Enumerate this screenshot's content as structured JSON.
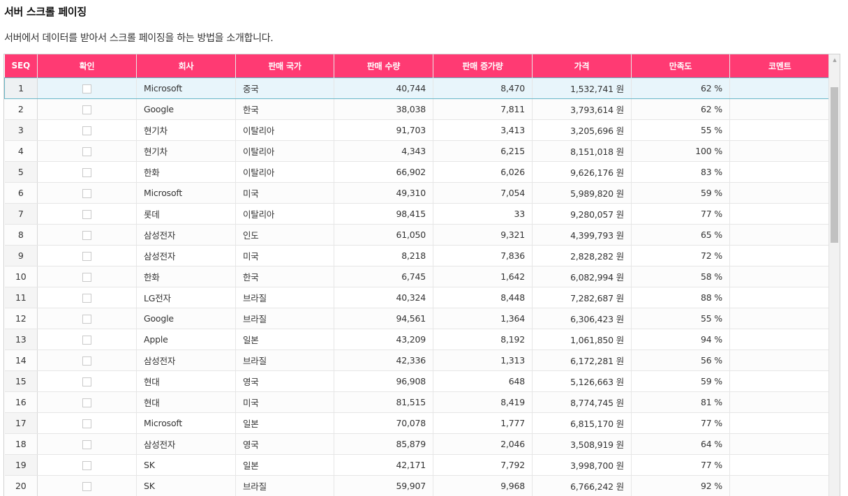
{
  "page": {
    "title": "서버 스크롤 페이징",
    "description": "서버에서 데이터를 받아서 스크롤 페이징을 하는 방법을 소개합니다."
  },
  "grid": {
    "columns": [
      "SEQ",
      "확인",
      "회사",
      "판매 국가",
      "판매 수량",
      "판매 증가량",
      "가격",
      "만족도",
      "코멘트"
    ],
    "header_color": "#ff3a73",
    "selected_row": 1,
    "rows": [
      {
        "seq": "1",
        "company": "Microsoft",
        "country": "중국",
        "qty": "40,744",
        "inc": "8,470",
        "price": "1,532,741 원",
        "sat": "62 %",
        "comment": ""
      },
      {
        "seq": "2",
        "company": "Google",
        "country": "한국",
        "qty": "38,038",
        "inc": "7,811",
        "price": "3,793,614 원",
        "sat": "62 %",
        "comment": ""
      },
      {
        "seq": "3",
        "company": "현기차",
        "country": "이탈리아",
        "qty": "91,703",
        "inc": "3,413",
        "price": "3,205,696 원",
        "sat": "55 %",
        "comment": ""
      },
      {
        "seq": "4",
        "company": "현기차",
        "country": "이탈리아",
        "qty": "4,343",
        "inc": "6,215",
        "price": "8,151,018 원",
        "sat": "100 %",
        "comment": ""
      },
      {
        "seq": "5",
        "company": "한화",
        "country": "이탈리아",
        "qty": "66,902",
        "inc": "6,026",
        "price": "9,626,176 원",
        "sat": "83 %",
        "comment": ""
      },
      {
        "seq": "6",
        "company": "Microsoft",
        "country": "미국",
        "qty": "49,310",
        "inc": "7,054",
        "price": "5,989,820 원",
        "sat": "59 %",
        "comment": ""
      },
      {
        "seq": "7",
        "company": "롯데",
        "country": "이탈리아",
        "qty": "98,415",
        "inc": "33",
        "price": "9,280,057 원",
        "sat": "77 %",
        "comment": ""
      },
      {
        "seq": "8",
        "company": "삼성전자",
        "country": "인도",
        "qty": "61,050",
        "inc": "9,321",
        "price": "4,399,793 원",
        "sat": "65 %",
        "comment": ""
      },
      {
        "seq": "9",
        "company": "삼성전자",
        "country": "미국",
        "qty": "8,218",
        "inc": "7,836",
        "price": "2,828,282 원",
        "sat": "72 %",
        "comment": ""
      },
      {
        "seq": "10",
        "company": "한화",
        "country": "한국",
        "qty": "6,745",
        "inc": "1,642",
        "price": "6,082,994 원",
        "sat": "58 %",
        "comment": ""
      },
      {
        "seq": "11",
        "company": "LG전자",
        "country": "브라질",
        "qty": "40,324",
        "inc": "8,448",
        "price": "7,282,687 원",
        "sat": "88 %",
        "comment": ""
      },
      {
        "seq": "12",
        "company": "Google",
        "country": "브라질",
        "qty": "94,561",
        "inc": "1,364",
        "price": "6,306,423 원",
        "sat": "55 %",
        "comment": ""
      },
      {
        "seq": "13",
        "company": "Apple",
        "country": "일본",
        "qty": "43,209",
        "inc": "8,192",
        "price": "1,061,850 원",
        "sat": "94 %",
        "comment": ""
      },
      {
        "seq": "14",
        "company": "삼성전자",
        "country": "브라질",
        "qty": "42,336",
        "inc": "1,313",
        "price": "6,172,281 원",
        "sat": "56 %",
        "comment": ""
      },
      {
        "seq": "15",
        "company": "현대",
        "country": "영국",
        "qty": "96,908",
        "inc": "648",
        "price": "5,126,663 원",
        "sat": "59 %",
        "comment": ""
      },
      {
        "seq": "16",
        "company": "현대",
        "country": "미국",
        "qty": "81,515",
        "inc": "8,419",
        "price": "8,774,745 원",
        "sat": "81 %",
        "comment": ""
      },
      {
        "seq": "17",
        "company": "Microsoft",
        "country": "일본",
        "qty": "70,078",
        "inc": "1,777",
        "price": "6,815,170 원",
        "sat": "77 %",
        "comment": ""
      },
      {
        "seq": "18",
        "company": "삼성전자",
        "country": "영국",
        "qty": "85,879",
        "inc": "2,046",
        "price": "3,508,919 원",
        "sat": "64 %",
        "comment": ""
      },
      {
        "seq": "19",
        "company": "SK",
        "country": "일본",
        "qty": "42,171",
        "inc": "7,792",
        "price": "3,998,700 원",
        "sat": "77 %",
        "comment": ""
      },
      {
        "seq": "20",
        "company": "SK",
        "country": "브라질",
        "qty": "59,907",
        "inc": "9,968",
        "price": "6,766,242 원",
        "sat": "92 %",
        "comment": ""
      }
    ]
  },
  "scrollbar": {
    "up_icon": "arrow-up-icon",
    "position_fraction": 0.05,
    "thumb_fraction": 0.36
  }
}
